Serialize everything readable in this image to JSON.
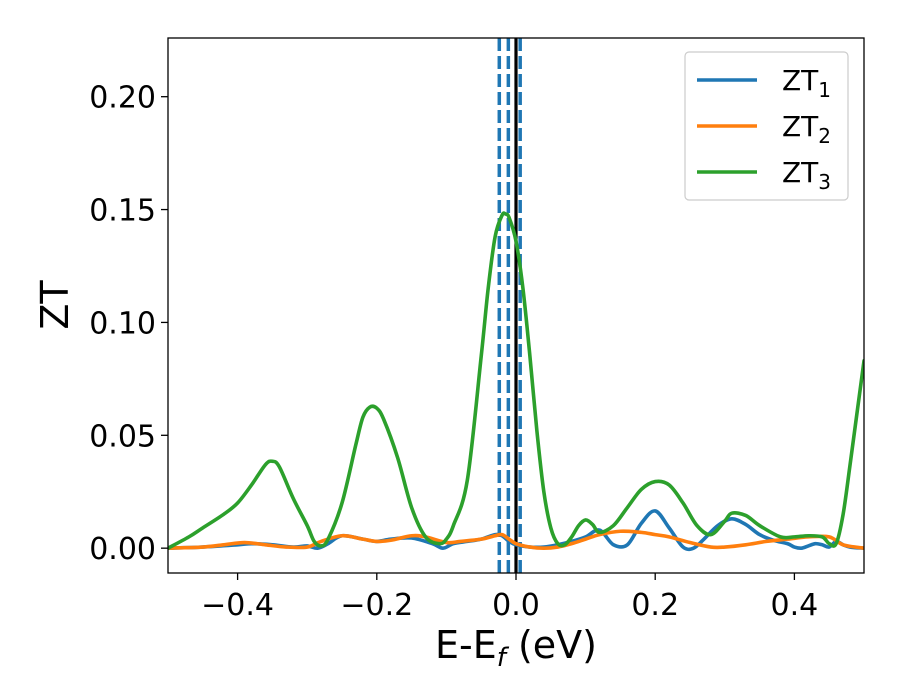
{
  "chart_data": {
    "type": "line",
    "xlabel": "E-E",
    "xlabel_sub": "f",
    "xlabel_unit": " (eV)",
    "ylabel": "ZT",
    "xlim": [
      -0.5,
      0.5
    ],
    "ylim": [
      -0.011,
      0.226
    ],
    "xticks": [
      -0.4,
      -0.2,
      0.0,
      0.2,
      0.4
    ],
    "xtick_labels": [
      "−0.4",
      "−0.2",
      "0.0",
      "0.2",
      "0.4"
    ],
    "yticks": [
      0.0,
      0.05,
      0.1,
      0.15,
      0.2
    ],
    "ytick_labels": [
      "0.00",
      "0.05",
      "0.10",
      "0.15",
      "0.20"
    ],
    "grid": false,
    "legend_position": "top-right",
    "vlines": [
      {
        "x": -0.024,
        "style": "dashed",
        "color": "#1f77b4"
      },
      {
        "x": -0.011,
        "style": "dashed",
        "color": "#1f77b4"
      },
      {
        "x": 0.006,
        "style": "dashed",
        "color": "#1f77b4"
      },
      {
        "x": 0.0,
        "style": "solid",
        "color": "#000000"
      }
    ],
    "series": [
      {
        "name": "ZT",
        "name_sub": "1",
        "color": "#1f77b4",
        "x": [
          -0.5,
          -0.45,
          -0.4,
          -0.38,
          -0.35,
          -0.32,
          -0.3,
          -0.285,
          -0.27,
          -0.25,
          -0.22,
          -0.2,
          -0.18,
          -0.15,
          -0.12,
          -0.105,
          -0.09,
          -0.07,
          -0.05,
          -0.03,
          -0.02,
          -0.01,
          0.0,
          0.02,
          0.04,
          0.06,
          0.08,
          0.1,
          0.12,
          0.14,
          0.16,
          0.18,
          0.2,
          0.22,
          0.24,
          0.255,
          0.27,
          0.29,
          0.31,
          0.33,
          0.35,
          0.37,
          0.39,
          0.4,
          0.41,
          0.42,
          0.43,
          0.44,
          0.45,
          0.46,
          0.47,
          0.48,
          0.5
        ],
        "y": [
          0.0,
          0.0005,
          0.0015,
          0.002,
          0.0015,
          0.0005,
          0.001,
          0.0,
          0.002,
          0.0055,
          0.004,
          0.003,
          0.004,
          0.0045,
          0.002,
          0.0,
          0.002,
          0.003,
          0.004,
          0.006,
          0.0055,
          0.003,
          0.0015,
          0.0005,
          0.0005,
          0.0015,
          0.003,
          0.005,
          0.008,
          0.0015,
          0.0015,
          0.011,
          0.0165,
          0.009,
          0.0005,
          0.0,
          0.004,
          0.01,
          0.013,
          0.0105,
          0.006,
          0.0035,
          0.002,
          0.0005,
          0.0,
          0.001,
          0.002,
          0.0015,
          0.0005,
          0.003,
          0.0015,
          0.0005,
          0.0
        ]
      },
      {
        "name": "ZT",
        "name_sub": "2",
        "color": "#ff7f0e",
        "x": [
          -0.5,
          -0.45,
          -0.42,
          -0.39,
          -0.36,
          -0.33,
          -0.3,
          -0.28,
          -0.25,
          -0.22,
          -0.2,
          -0.18,
          -0.15,
          -0.13,
          -0.1,
          -0.08,
          -0.05,
          -0.03,
          -0.02,
          -0.01,
          0.0,
          0.02,
          0.04,
          0.06,
          0.08,
          0.1,
          0.12,
          0.15,
          0.18,
          0.2,
          0.22,
          0.25,
          0.28,
          0.3,
          0.33,
          0.36,
          0.39,
          0.42,
          0.45,
          0.47,
          0.5
        ],
        "y": [
          0.0,
          0.0005,
          0.0015,
          0.0025,
          0.0015,
          0.0005,
          0.0005,
          0.003,
          0.0055,
          0.004,
          0.003,
          0.0035,
          0.0055,
          0.005,
          0.0025,
          0.003,
          0.004,
          0.0055,
          0.006,
          0.004,
          0.002,
          0.0005,
          0.0,
          0.0005,
          0.002,
          0.004,
          0.006,
          0.0075,
          0.007,
          0.006,
          0.005,
          0.0025,
          0.0005,
          0.0005,
          0.0015,
          0.003,
          0.004,
          0.005,
          0.005,
          0.0015,
          0.0
        ]
      },
      {
        "name": "ZT",
        "name_sub": "3",
        "color": "#2ca02c",
        "x": [
          -0.5,
          -0.47,
          -0.45,
          -0.42,
          -0.4,
          -0.38,
          -0.36,
          -0.35,
          -0.34,
          -0.32,
          -0.3,
          -0.29,
          -0.28,
          -0.27,
          -0.25,
          -0.23,
          -0.22,
          -0.21,
          -0.2,
          -0.19,
          -0.17,
          -0.15,
          -0.13,
          -0.11,
          -0.1,
          -0.09,
          -0.07,
          -0.05,
          -0.04,
          -0.03,
          -0.02,
          -0.015,
          -0.01,
          0.0,
          0.01,
          0.02,
          0.03,
          0.04,
          0.05,
          0.06,
          0.07,
          0.08,
          0.09,
          0.1,
          0.11,
          0.12,
          0.14,
          0.16,
          0.18,
          0.2,
          0.22,
          0.24,
          0.26,
          0.28,
          0.3,
          0.31,
          0.33,
          0.35,
          0.38,
          0.4,
          0.42,
          0.44,
          0.45,
          0.46,
          0.47,
          0.48,
          0.49,
          0.5
        ],
        "y": [
          0.0,
          0.005,
          0.009,
          0.015,
          0.02,
          0.028,
          0.037,
          0.0385,
          0.036,
          0.022,
          0.01,
          0.003,
          0.001,
          0.004,
          0.02,
          0.046,
          0.058,
          0.0625,
          0.062,
          0.057,
          0.04,
          0.018,
          0.005,
          0.002,
          0.004,
          0.01,
          0.03,
          0.085,
          0.115,
          0.138,
          0.1475,
          0.148,
          0.1465,
          0.136,
          0.115,
          0.085,
          0.052,
          0.025,
          0.009,
          0.002,
          0.0015,
          0.005,
          0.01,
          0.0125,
          0.0105,
          0.007,
          0.01,
          0.018,
          0.026,
          0.0295,
          0.028,
          0.02,
          0.01,
          0.006,
          0.012,
          0.0155,
          0.0145,
          0.01,
          0.005,
          0.005,
          0.0055,
          0.005,
          0.002,
          0.002,
          0.015,
          0.037,
          0.06,
          0.083
        ]
      }
    ]
  }
}
